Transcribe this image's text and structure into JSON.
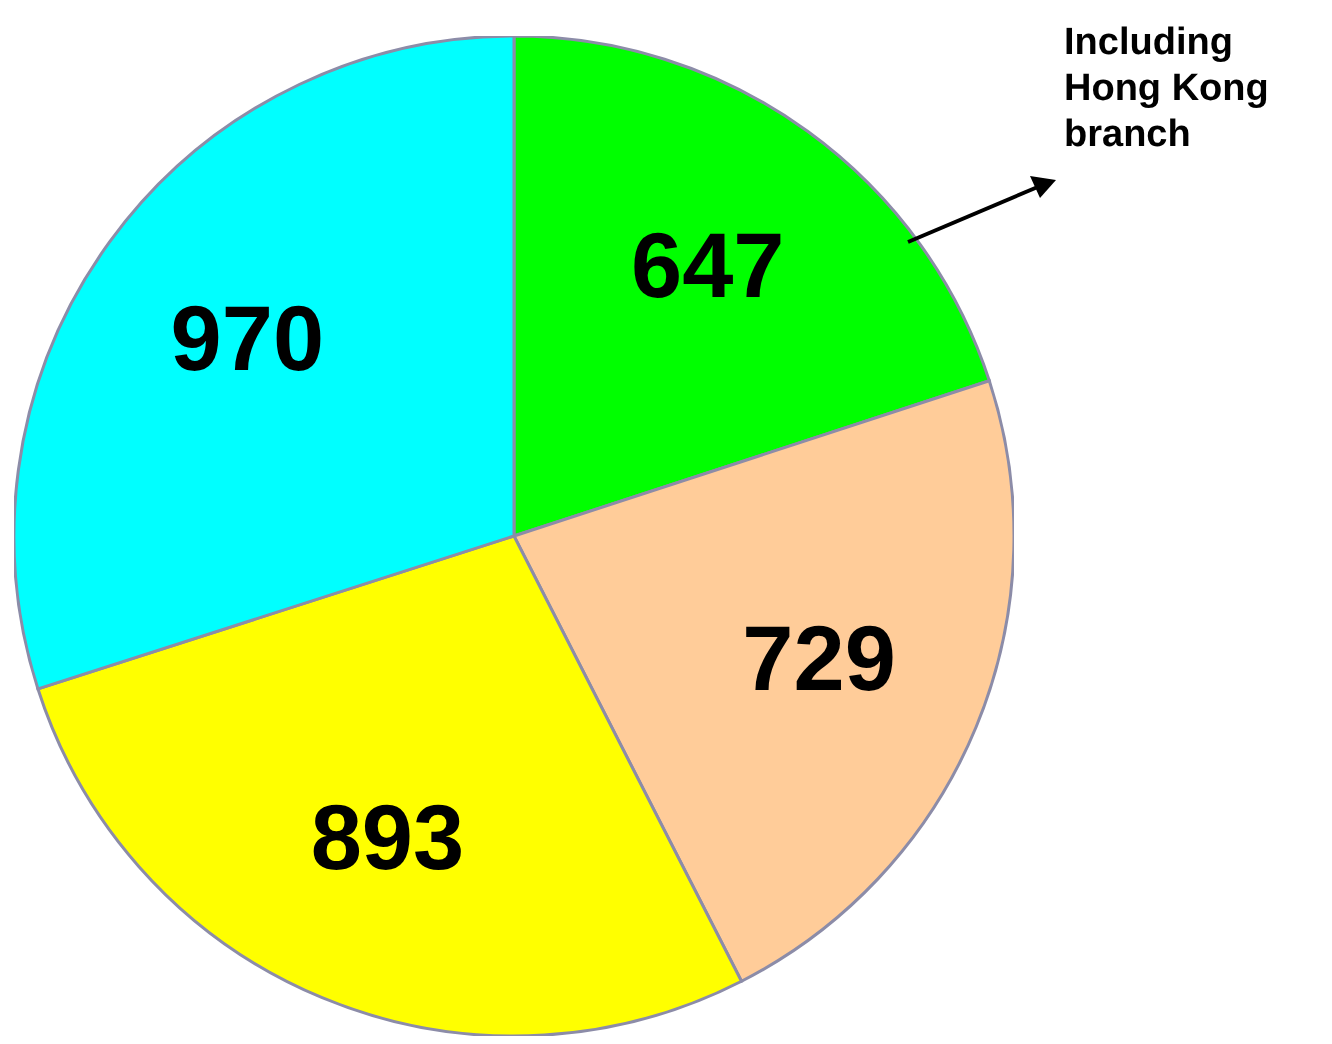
{
  "chart_data": {
    "type": "pie",
    "categories": [
      null,
      null,
      null,
      null
    ],
    "values": [
      647,
      729,
      893,
      970
    ],
    "colors": [
      "#00ff00",
      "#ffcc99",
      "#ffff00",
      "#00ffff"
    ],
    "data_labels": true,
    "annotations": [
      {
        "text": "Including Hong Kong branch"
      }
    ]
  }
}
